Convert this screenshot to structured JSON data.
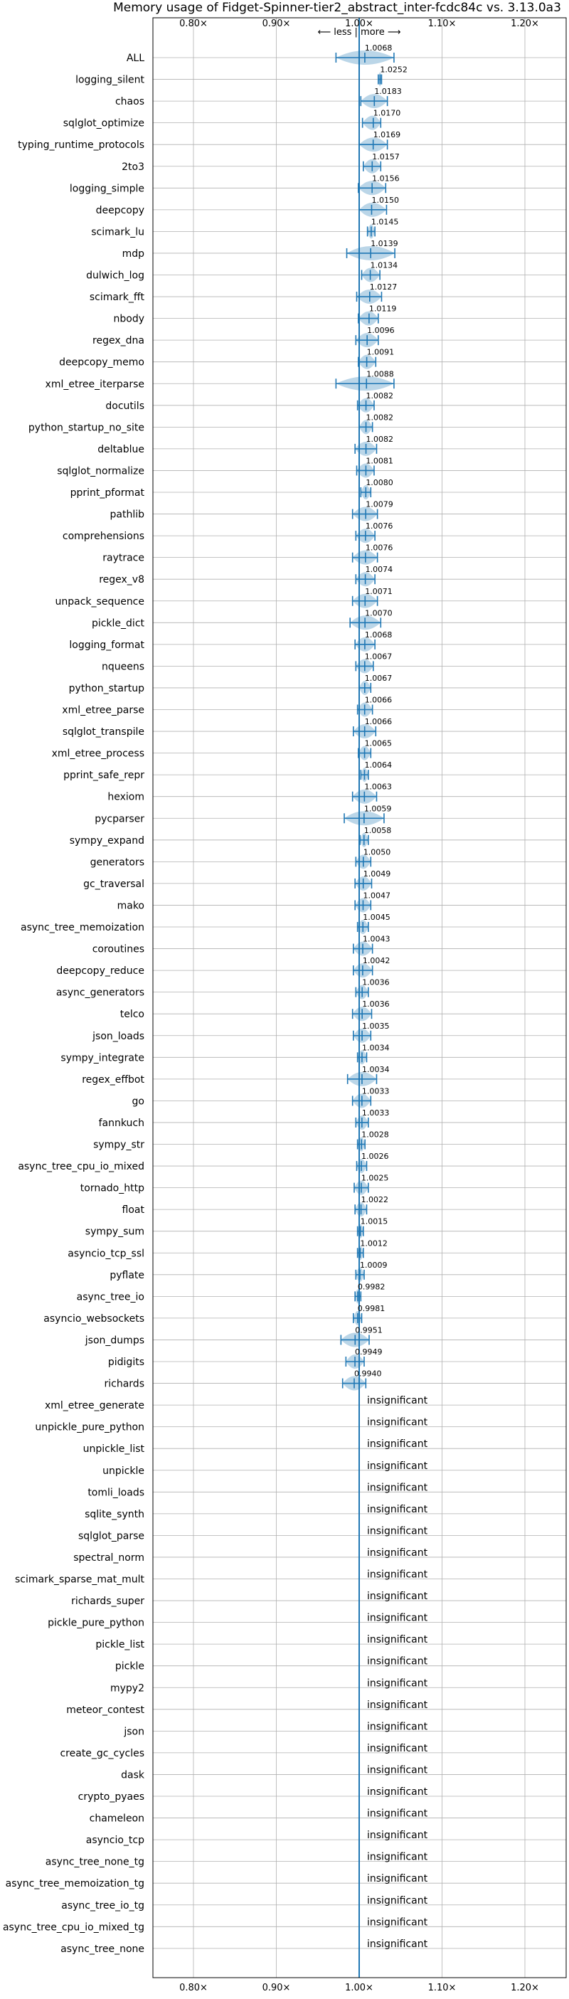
{
  "chart_data": {
    "type": "violin",
    "title": "Memory usage of Fidget-Spinner-tier2_abstract_inter-fcdc84c vs. 3.13.0a3",
    "direction_label": "⟵ less | more ⟶",
    "x_ticks": [
      "0.80×",
      "0.90×",
      "1.00×",
      "1.10×",
      "1.20×"
    ],
    "x_tick_values": [
      0.8,
      0.9,
      1.0,
      1.1,
      1.2
    ],
    "xlim": [
      0.75,
      1.25
    ],
    "reference_line": 1.0,
    "series_color": "#1f77b4",
    "insignificant_label": "insignificant",
    "benchmarks": [
      {
        "name": "ALL",
        "value": 1.0068,
        "label": "1.0068",
        "lo": 0.972,
        "hi": 1.042
      },
      {
        "name": "logging_silent",
        "value": 1.0252,
        "label": "1.0252",
        "lo": 1.023,
        "hi": 1.027
      },
      {
        "name": "chaos",
        "value": 1.0183,
        "label": "1.0183",
        "lo": 1.002,
        "hi": 1.034
      },
      {
        "name": "sqlglot_optimize",
        "value": 1.017,
        "label": "1.0170",
        "lo": 1.004,
        "hi": 1.026
      },
      {
        "name": "typing_runtime_protocols",
        "value": 1.0169,
        "label": "1.0169",
        "lo": 1.0,
        "hi": 1.034
      },
      {
        "name": "2to3",
        "value": 1.0157,
        "label": "1.0157",
        "lo": 1.005,
        "hi": 1.026
      },
      {
        "name": "logging_simple",
        "value": 1.0156,
        "label": "1.0156",
        "lo": 0.999,
        "hi": 1.032
      },
      {
        "name": "deepcopy",
        "value": 1.015,
        "label": "1.0150",
        "lo": 1.0,
        "hi": 1.033
      },
      {
        "name": "scimark_lu",
        "value": 1.0145,
        "label": "1.0145",
        "lo": 1.01,
        "hi": 1.019
      },
      {
        "name": "mdp",
        "value": 1.0139,
        "label": "1.0139",
        "lo": 0.985,
        "hi": 1.043
      },
      {
        "name": "dulwich_log",
        "value": 1.0134,
        "label": "1.0134",
        "lo": 1.003,
        "hi": 1.025
      },
      {
        "name": "scimark_fft",
        "value": 1.0127,
        "label": "1.0127",
        "lo": 0.997,
        "hi": 1.027
      },
      {
        "name": "nbody",
        "value": 1.0119,
        "label": "1.0119",
        "lo": 0.999,
        "hi": 1.023
      },
      {
        "name": "regex_dna",
        "value": 1.0096,
        "label": "1.0096",
        "lo": 0.996,
        "hi": 1.023
      },
      {
        "name": "deepcopy_memo",
        "value": 1.0091,
        "label": "1.0091",
        "lo": 0.999,
        "hi": 1.02
      },
      {
        "name": "xml_etree_iterparse",
        "value": 1.0088,
        "label": "1.0088",
        "lo": 0.972,
        "hi": 1.042
      },
      {
        "name": "docutils",
        "value": 1.0082,
        "label": "1.0082",
        "lo": 0.998,
        "hi": 1.018
      },
      {
        "name": "python_startup_no_site",
        "value": 1.0082,
        "label": "1.0082",
        "lo": 1.0,
        "hi": 1.016
      },
      {
        "name": "deltablue",
        "value": 1.0082,
        "label": "1.0082",
        "lo": 0.995,
        "hi": 1.021
      },
      {
        "name": "sqlglot_normalize",
        "value": 1.0081,
        "label": "1.0081",
        "lo": 0.997,
        "hi": 1.018
      },
      {
        "name": "pprint_pformat",
        "value": 1.008,
        "label": "1.0080",
        "lo": 1.002,
        "hi": 1.014
      },
      {
        "name": "pathlib",
        "value": 1.0079,
        "label": "1.0079",
        "lo": 0.992,
        "hi": 1.022
      },
      {
        "name": "comprehensions",
        "value": 1.0076,
        "label": "1.0076",
        "lo": 0.996,
        "hi": 1.019
      },
      {
        "name": "raytrace",
        "value": 1.0076,
        "label": "1.0076",
        "lo": 0.992,
        "hi": 1.022
      },
      {
        "name": "regex_v8",
        "value": 1.0074,
        "label": "1.0074",
        "lo": 0.996,
        "hi": 1.019
      },
      {
        "name": "unpack_sequence",
        "value": 1.0071,
        "label": "1.0071",
        "lo": 0.992,
        "hi": 1.022
      },
      {
        "name": "pickle_dict",
        "value": 1.007,
        "label": "1.0070",
        "lo": 0.989,
        "hi": 1.026
      },
      {
        "name": "logging_format",
        "value": 1.0068,
        "label": "1.0068",
        "lo": 0.995,
        "hi": 1.019
      },
      {
        "name": "nqueens",
        "value": 1.0067,
        "label": "1.0067",
        "lo": 0.996,
        "hi": 1.017
      },
      {
        "name": "python_startup",
        "value": 1.0067,
        "label": "1.0067",
        "lo": 1.0,
        "hi": 1.014
      },
      {
        "name": "xml_etree_parse",
        "value": 1.0066,
        "label": "1.0066",
        "lo": 0.998,
        "hi": 1.016
      },
      {
        "name": "sqlglot_transpile",
        "value": 1.0066,
        "label": "1.0066",
        "lo": 0.993,
        "hi": 1.02
      },
      {
        "name": "xml_etree_process",
        "value": 1.0065,
        "label": "1.0065",
        "lo": 0.999,
        "hi": 1.014
      },
      {
        "name": "pprint_safe_repr",
        "value": 1.0064,
        "label": "1.0064",
        "lo": 1.002,
        "hi": 1.011
      },
      {
        "name": "hexiom",
        "value": 1.0063,
        "label": "1.0063",
        "lo": 0.992,
        "hi": 1.021
      },
      {
        "name": "pycparser",
        "value": 1.0059,
        "label": "1.0059",
        "lo": 0.982,
        "hi": 1.03
      },
      {
        "name": "sympy_expand",
        "value": 1.0058,
        "label": "1.0058",
        "lo": 1.001,
        "hi": 1.011
      },
      {
        "name": "generators",
        "value": 1.005,
        "label": "1.0050",
        "lo": 0.996,
        "hi": 1.014
      },
      {
        "name": "gc_traversal",
        "value": 1.0049,
        "label": "1.0049",
        "lo": 0.995,
        "hi": 1.015
      },
      {
        "name": "mako",
        "value": 1.0047,
        "label": "1.0047",
        "lo": 0.995,
        "hi": 1.014
      },
      {
        "name": "async_tree_memoization",
        "value": 1.0045,
        "label": "1.0045",
        "lo": 0.998,
        "hi": 1.011
      },
      {
        "name": "coroutines",
        "value": 1.0043,
        "label": "1.0043",
        "lo": 0.993,
        "hi": 1.016
      },
      {
        "name": "deepcopy_reduce",
        "value": 1.0042,
        "label": "1.0042",
        "lo": 0.993,
        "hi": 1.016
      },
      {
        "name": "async_generators",
        "value": 1.0036,
        "label": "1.0036",
        "lo": 0.996,
        "hi": 1.011
      },
      {
        "name": "telco",
        "value": 1.0036,
        "label": "1.0036",
        "lo": 0.992,
        "hi": 1.015
      },
      {
        "name": "json_loads",
        "value": 1.0035,
        "label": "1.0035",
        "lo": 0.993,
        "hi": 1.014
      },
      {
        "name": "sympy_integrate",
        "value": 1.0034,
        "label": "1.0034",
        "lo": 0.998,
        "hi": 1.009
      },
      {
        "name": "regex_effbot",
        "value": 1.0034,
        "label": "1.0034",
        "lo": 0.986,
        "hi": 1.021
      },
      {
        "name": "go",
        "value": 1.0033,
        "label": "1.0033",
        "lo": 0.992,
        "hi": 1.014
      },
      {
        "name": "fannkuch",
        "value": 1.0033,
        "label": "1.0033",
        "lo": 0.996,
        "hi": 1.011
      },
      {
        "name": "sympy_str",
        "value": 1.0028,
        "label": "1.0028",
        "lo": 0.998,
        "hi": 1.007
      },
      {
        "name": "async_tree_cpu_io_mixed",
        "value": 1.0026,
        "label": "1.0026",
        "lo": 0.997,
        "hi": 1.009
      },
      {
        "name": "tornado_http",
        "value": 1.0025,
        "label": "1.0025",
        "lo": 0.994,
        "hi": 1.011
      },
      {
        "name": "float",
        "value": 1.0022,
        "label": "1.0022",
        "lo": 0.995,
        "hi": 1.009
      },
      {
        "name": "sympy_sum",
        "value": 1.0015,
        "label": "1.0015",
        "lo": 0.998,
        "hi": 1.005
      },
      {
        "name": "asyncio_tcp_ssl",
        "value": 1.0012,
        "label": "1.0012",
        "lo": 0.998,
        "hi": 1.005
      },
      {
        "name": "pyflate",
        "value": 1.0009,
        "label": "1.0009",
        "lo": 0.996,
        "hi": 1.006
      },
      {
        "name": "async_tree_io",
        "value": 0.9982,
        "label": "0.9982",
        "lo": 0.995,
        "hi": 1.002
      },
      {
        "name": "asyncio_websockets",
        "value": 0.9981,
        "label": "0.9981",
        "lo": 0.993,
        "hi": 1.003
      },
      {
        "name": "json_dumps",
        "value": 0.9951,
        "label": "0.9951",
        "lo": 0.978,
        "hi": 1.012
      },
      {
        "name": "pidigits",
        "value": 0.9949,
        "label": "0.9949",
        "lo": 0.984,
        "hi": 1.006
      },
      {
        "name": "richards",
        "value": 0.994,
        "label": "0.9940",
        "lo": 0.98,
        "hi": 1.008
      },
      {
        "name": "xml_etree_generate",
        "insignificant": true
      },
      {
        "name": "unpickle_pure_python",
        "insignificant": true
      },
      {
        "name": "unpickle_list",
        "insignificant": true
      },
      {
        "name": "unpickle",
        "insignificant": true
      },
      {
        "name": "tomli_loads",
        "insignificant": true
      },
      {
        "name": "sqlite_synth",
        "insignificant": true
      },
      {
        "name": "sqlglot_parse",
        "insignificant": true
      },
      {
        "name": "spectral_norm",
        "insignificant": true
      },
      {
        "name": "scimark_sparse_mat_mult",
        "insignificant": true
      },
      {
        "name": "richards_super",
        "insignificant": true
      },
      {
        "name": "pickle_pure_python",
        "insignificant": true
      },
      {
        "name": "pickle_list",
        "insignificant": true
      },
      {
        "name": "pickle",
        "insignificant": true
      },
      {
        "name": "mypy2",
        "insignificant": true
      },
      {
        "name": "meteor_contest",
        "insignificant": true
      },
      {
        "name": "json",
        "insignificant": true
      },
      {
        "name": "create_gc_cycles",
        "insignificant": true
      },
      {
        "name": "dask",
        "insignificant": true
      },
      {
        "name": "crypto_pyaes",
        "insignificant": true
      },
      {
        "name": "chameleon",
        "insignificant": true
      },
      {
        "name": "asyncio_tcp",
        "insignificant": true
      },
      {
        "name": "async_tree_none_tg",
        "insignificant": true
      },
      {
        "name": "async_tree_memoization_tg",
        "insignificant": true
      },
      {
        "name": "async_tree_io_tg",
        "insignificant": true
      },
      {
        "name": "async_tree_cpu_io_mixed_tg",
        "insignificant": true
      },
      {
        "name": "async_tree_none",
        "insignificant": true
      }
    ]
  }
}
